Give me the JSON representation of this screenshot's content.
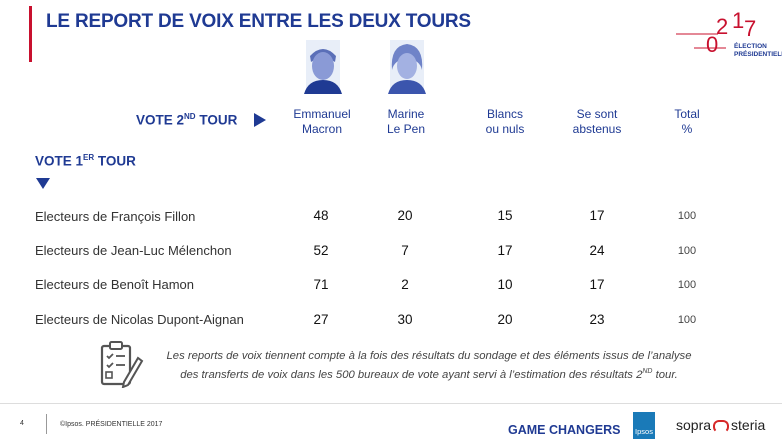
{
  "title": "LE REPORT DE VOIX ENTRE LES DEUX TOURS",
  "logo": {
    "year_digits": [
      "2",
      "0",
      "1",
      "7"
    ],
    "line1": "ÉLECTION",
    "line2": "PRÉSIDENTIELLE"
  },
  "vote2": {
    "prefix": "VOTE 2",
    "sup": "ND",
    "suffix": " TOUR"
  },
  "vote1": {
    "prefix": "VOTE 1",
    "sup": "ER",
    "suffix": " TOUR"
  },
  "columns": [
    {
      "line1": "Emmanuel",
      "line2": "Macron"
    },
    {
      "line1": "Marine",
      "line2": "Le Pen"
    },
    {
      "line1": "Blancs",
      "line2": "ou nuls"
    },
    {
      "line1": "Se sont",
      "line2": "abstenus"
    },
    {
      "line1": "Total",
      "line2": "%"
    }
  ],
  "rows": [
    {
      "label": "Electeurs de François Fillon",
      "values": [
        "48",
        "20",
        "15",
        "17",
        "100"
      ]
    },
    {
      "label": "Electeurs de Jean-Luc Mélenchon",
      "values": [
        "52",
        "7",
        "17",
        "24",
        "100"
      ]
    },
    {
      "label": "Electeurs de Benoît Hamon",
      "values": [
        "71",
        "2",
        "10",
        "17",
        "100"
      ]
    },
    {
      "label": "Electeurs de Nicolas Dupont-Aignan",
      "values": [
        "27",
        "30",
        "20",
        "23",
        "100"
      ]
    }
  ],
  "note": {
    "line1": "Les reports de voix tiennent compte à la fois des résultats du sondage et des éléments issus de l’analyse",
    "line2_prefix": "des transferts de voix dans les 500 bureaux de vote ayant servi à l’estimation des résultats 2",
    "line2_sup": "ND",
    "line2_suffix": " tour."
  },
  "footer": {
    "page": "4",
    "copyright": "©Ipsos.  PRÉSIDENTIELLE 2017",
    "game_changers": "GAME CHANGERS",
    "ipsos": "Ipsos",
    "sopra": "sopra",
    "steria": "steria"
  },
  "colors": {
    "blue": "#1f3a93",
    "red": "#c8102e"
  }
}
